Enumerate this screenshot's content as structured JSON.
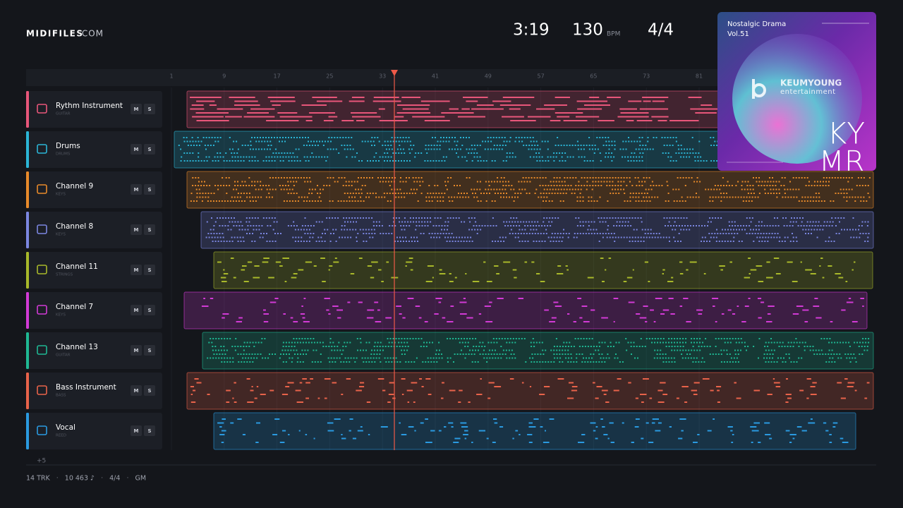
{
  "header": {
    "logo": "MIDIFILES",
    "logo_suffix": ".COM",
    "time": "3:19",
    "tempo": "130",
    "tempo_unit": "BPM",
    "signature": "4/4"
  },
  "ruler": {
    "bars": [
      1,
      9,
      17,
      25,
      33,
      41,
      49,
      57,
      65,
      73,
      81
    ]
  },
  "tracks": [
    {
      "name": "Rythm Instrument",
      "type": "GUITAR",
      "color": "#e8567a",
      "mute": "M",
      "solo": "S"
    },
    {
      "name": "Drums",
      "type": "DRUMS",
      "color": "#2bb5d6",
      "mute": "M",
      "solo": "S"
    },
    {
      "name": "Channel 9",
      "type": "KEYS",
      "color": "#e88a2a",
      "mute": "M",
      "solo": "S"
    },
    {
      "name": "Channel 8",
      "type": "KEYS",
      "color": "#7b86e0",
      "mute": "M",
      "solo": "S"
    },
    {
      "name": "Channel 11",
      "type": "STRINGS",
      "color": "#a8b82a",
      "mute": "M",
      "solo": "S"
    },
    {
      "name": "Channel 7",
      "type": "KEYS",
      "color": "#d23ad6",
      "mute": "M",
      "solo": "S"
    },
    {
      "name": "Channel 13",
      "type": "GUITAR",
      "color": "#1fb893",
      "mute": "M",
      "solo": "S"
    },
    {
      "name": "Bass Instrument",
      "type": "BASS",
      "color": "#e8634a",
      "mute": "M",
      "solo": "S"
    },
    {
      "name": "Vocal",
      "type": "REED",
      "color": "#2a9ae0",
      "mute": "M",
      "solo": "S"
    }
  ],
  "more_tracks": "+5",
  "footer": {
    "items": [
      "14 TRK",
      "10 463 ♪",
      "4/4",
      "GM"
    ],
    "separator": "·"
  },
  "album": {
    "title": "Nostalgic Drama",
    "volume": "Vol.51",
    "label": "KEUMYOUNG",
    "label_sub": "entertainment",
    "mark_top": "KY",
    "mark_bottom": "MR"
  }
}
